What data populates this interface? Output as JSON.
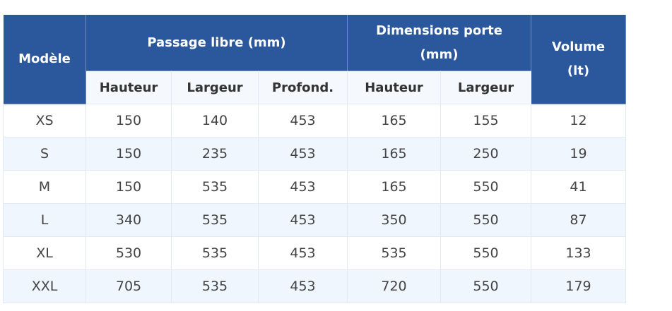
{
  "table": {
    "header": {
      "model": "Modèle",
      "passage": "Passage libre (mm)",
      "door": "Dimensions porte (mm)",
      "volume": "Volume (lt)",
      "sub": [
        "Hauteur",
        "Largeur",
        "Profond.",
        "Hauteur",
        "Largeur"
      ]
    },
    "rows": [
      [
        "XS",
        150,
        140,
        453,
        165,
        155,
        12
      ],
      [
        "S",
        150,
        235,
        453,
        165,
        250,
        19
      ],
      [
        "M",
        150,
        535,
        453,
        165,
        550,
        41
      ],
      [
        "L",
        340,
        535,
        453,
        350,
        550,
        87
      ],
      [
        "XL",
        530,
        535,
        453,
        535,
        550,
        133
      ],
      [
        "XXL",
        705,
        535,
        453,
        720,
        550,
        179
      ]
    ]
  }
}
